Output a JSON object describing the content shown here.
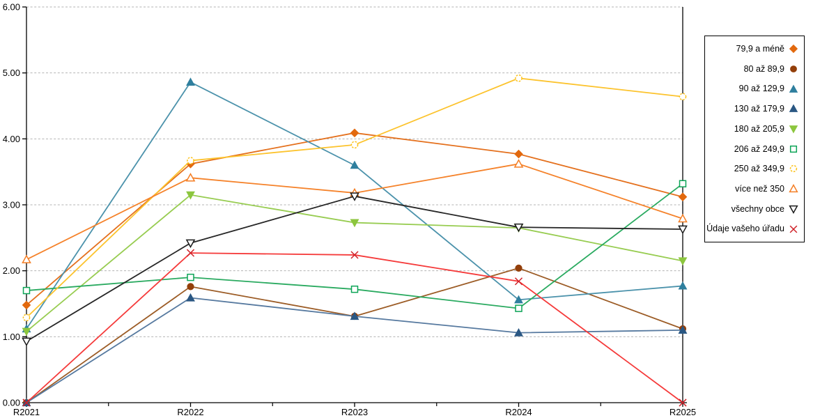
{
  "chart_data": {
    "type": "line",
    "title": "",
    "xlabel": "",
    "ylabel": "",
    "x_categories": [
      "R2021",
      "R2022",
      "R2023",
      "R2024",
      "R2025"
    ],
    "y_tick_labels": [
      "0.00",
      "1.00",
      "2.00",
      "3.00",
      "4.00",
      "5.00",
      "6.00"
    ],
    "ylim": [
      0,
      6
    ],
    "grid": "horizontal-dashed",
    "grid_color": "#b3b3b3",
    "axis_color": "#000000",
    "legend_position": "right-outside",
    "series": [
      {
        "name": "79,9 a méně",
        "marker": "diamond",
        "fill": "filled",
        "color": "#e2690e",
        "line_color": "#e4701d",
        "values": [
          1.48,
          3.62,
          4.09,
          3.77,
          3.12
        ]
      },
      {
        "name": "80 až 89,9",
        "marker": "circle",
        "fill": "filled",
        "color": "#933f0a",
        "line_color": "#9c5c26",
        "values": [
          0.0,
          1.76,
          1.31,
          2.04,
          1.12
        ]
      },
      {
        "name": "90 až 129,9",
        "marker": "triangle-up",
        "fill": "filled",
        "color": "#2f7f9e",
        "line_color": "#4b92ab",
        "values": [
          1.12,
          4.86,
          3.6,
          1.56,
          1.77
        ]
      },
      {
        "name": "130 až 179,9",
        "marker": "triangle-up",
        "fill": "filled",
        "color": "#2a5783",
        "line_color": "#56799f",
        "values": [
          0.0,
          1.59,
          1.31,
          1.06,
          1.1
        ]
      },
      {
        "name": "180 až 205,9",
        "marker": "triangle-down",
        "fill": "filled",
        "color": "#8cc63e",
        "line_color": "#97cc50",
        "values": [
          1.08,
          3.15,
          2.73,
          2.65,
          2.15
        ]
      },
      {
        "name": "206 až 249,9",
        "marker": "square",
        "fill": "open",
        "color": "#0ca456",
        "line_color": "#2aaa60",
        "values": [
          1.7,
          1.9,
          1.72,
          1.43,
          3.32
        ]
      },
      {
        "name": "250 až 349,9",
        "marker": "circle-dashed",
        "fill": "open",
        "color": "#fcc117",
        "line_color": "#fcc32d",
        "values": [
          1.29,
          3.67,
          3.91,
          4.92,
          4.64
        ]
      },
      {
        "name": "více než 350",
        "marker": "triangle-up",
        "fill": "open",
        "color": "#f47e24",
        "line_color": "#f5822a",
        "values": [
          2.17,
          3.41,
          3.18,
          3.62,
          2.79
        ]
      },
      {
        "name": "všechny obce",
        "marker": "triangle-down",
        "fill": "open",
        "color": "#1a1a1a",
        "line_color": "#262626",
        "values": [
          0.93,
          2.42,
          3.13,
          2.66,
          2.63
        ]
      },
      {
        "name": "Údaje vašeho úřadu",
        "marker": "x",
        "fill": "open",
        "color": "#cf2128",
        "line_color": "#f53a3a",
        "values": [
          0.0,
          2.27,
          2.24,
          1.84,
          0.0
        ]
      }
    ]
  }
}
